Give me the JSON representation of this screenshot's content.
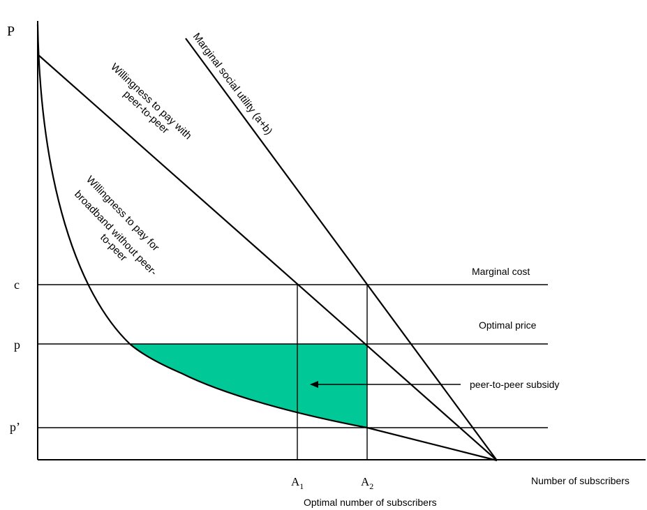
{
  "axes": {
    "y_label": "P",
    "x_label": "Number of subscribers",
    "x_sublabel": "Optimal number of subscribers"
  },
  "y_ticks": {
    "c": "c",
    "p": "p",
    "p_prime": "p’"
  },
  "x_ticks": {
    "a1_base": "A",
    "a1_sub": "1",
    "a2_base": "A",
    "a2_sub": "2"
  },
  "line_labels": {
    "marginal_cost": "Marginal cost",
    "optimal_price": "Optimal price",
    "subsidy": "peer-to-peer subsidy",
    "msu": "Marginal social utility (a+b)",
    "wtp_p2p_1": "Willingness to pay with",
    "wtp_p2p_2": "peer-to-peer",
    "wtp_no_1": "Willingness to pay for",
    "wtp_no_2": "broadband without peer-",
    "wtp_no_3": "to-peer"
  },
  "colors": {
    "subsidy_fill": "#00c896",
    "line": "#000000"
  }
}
